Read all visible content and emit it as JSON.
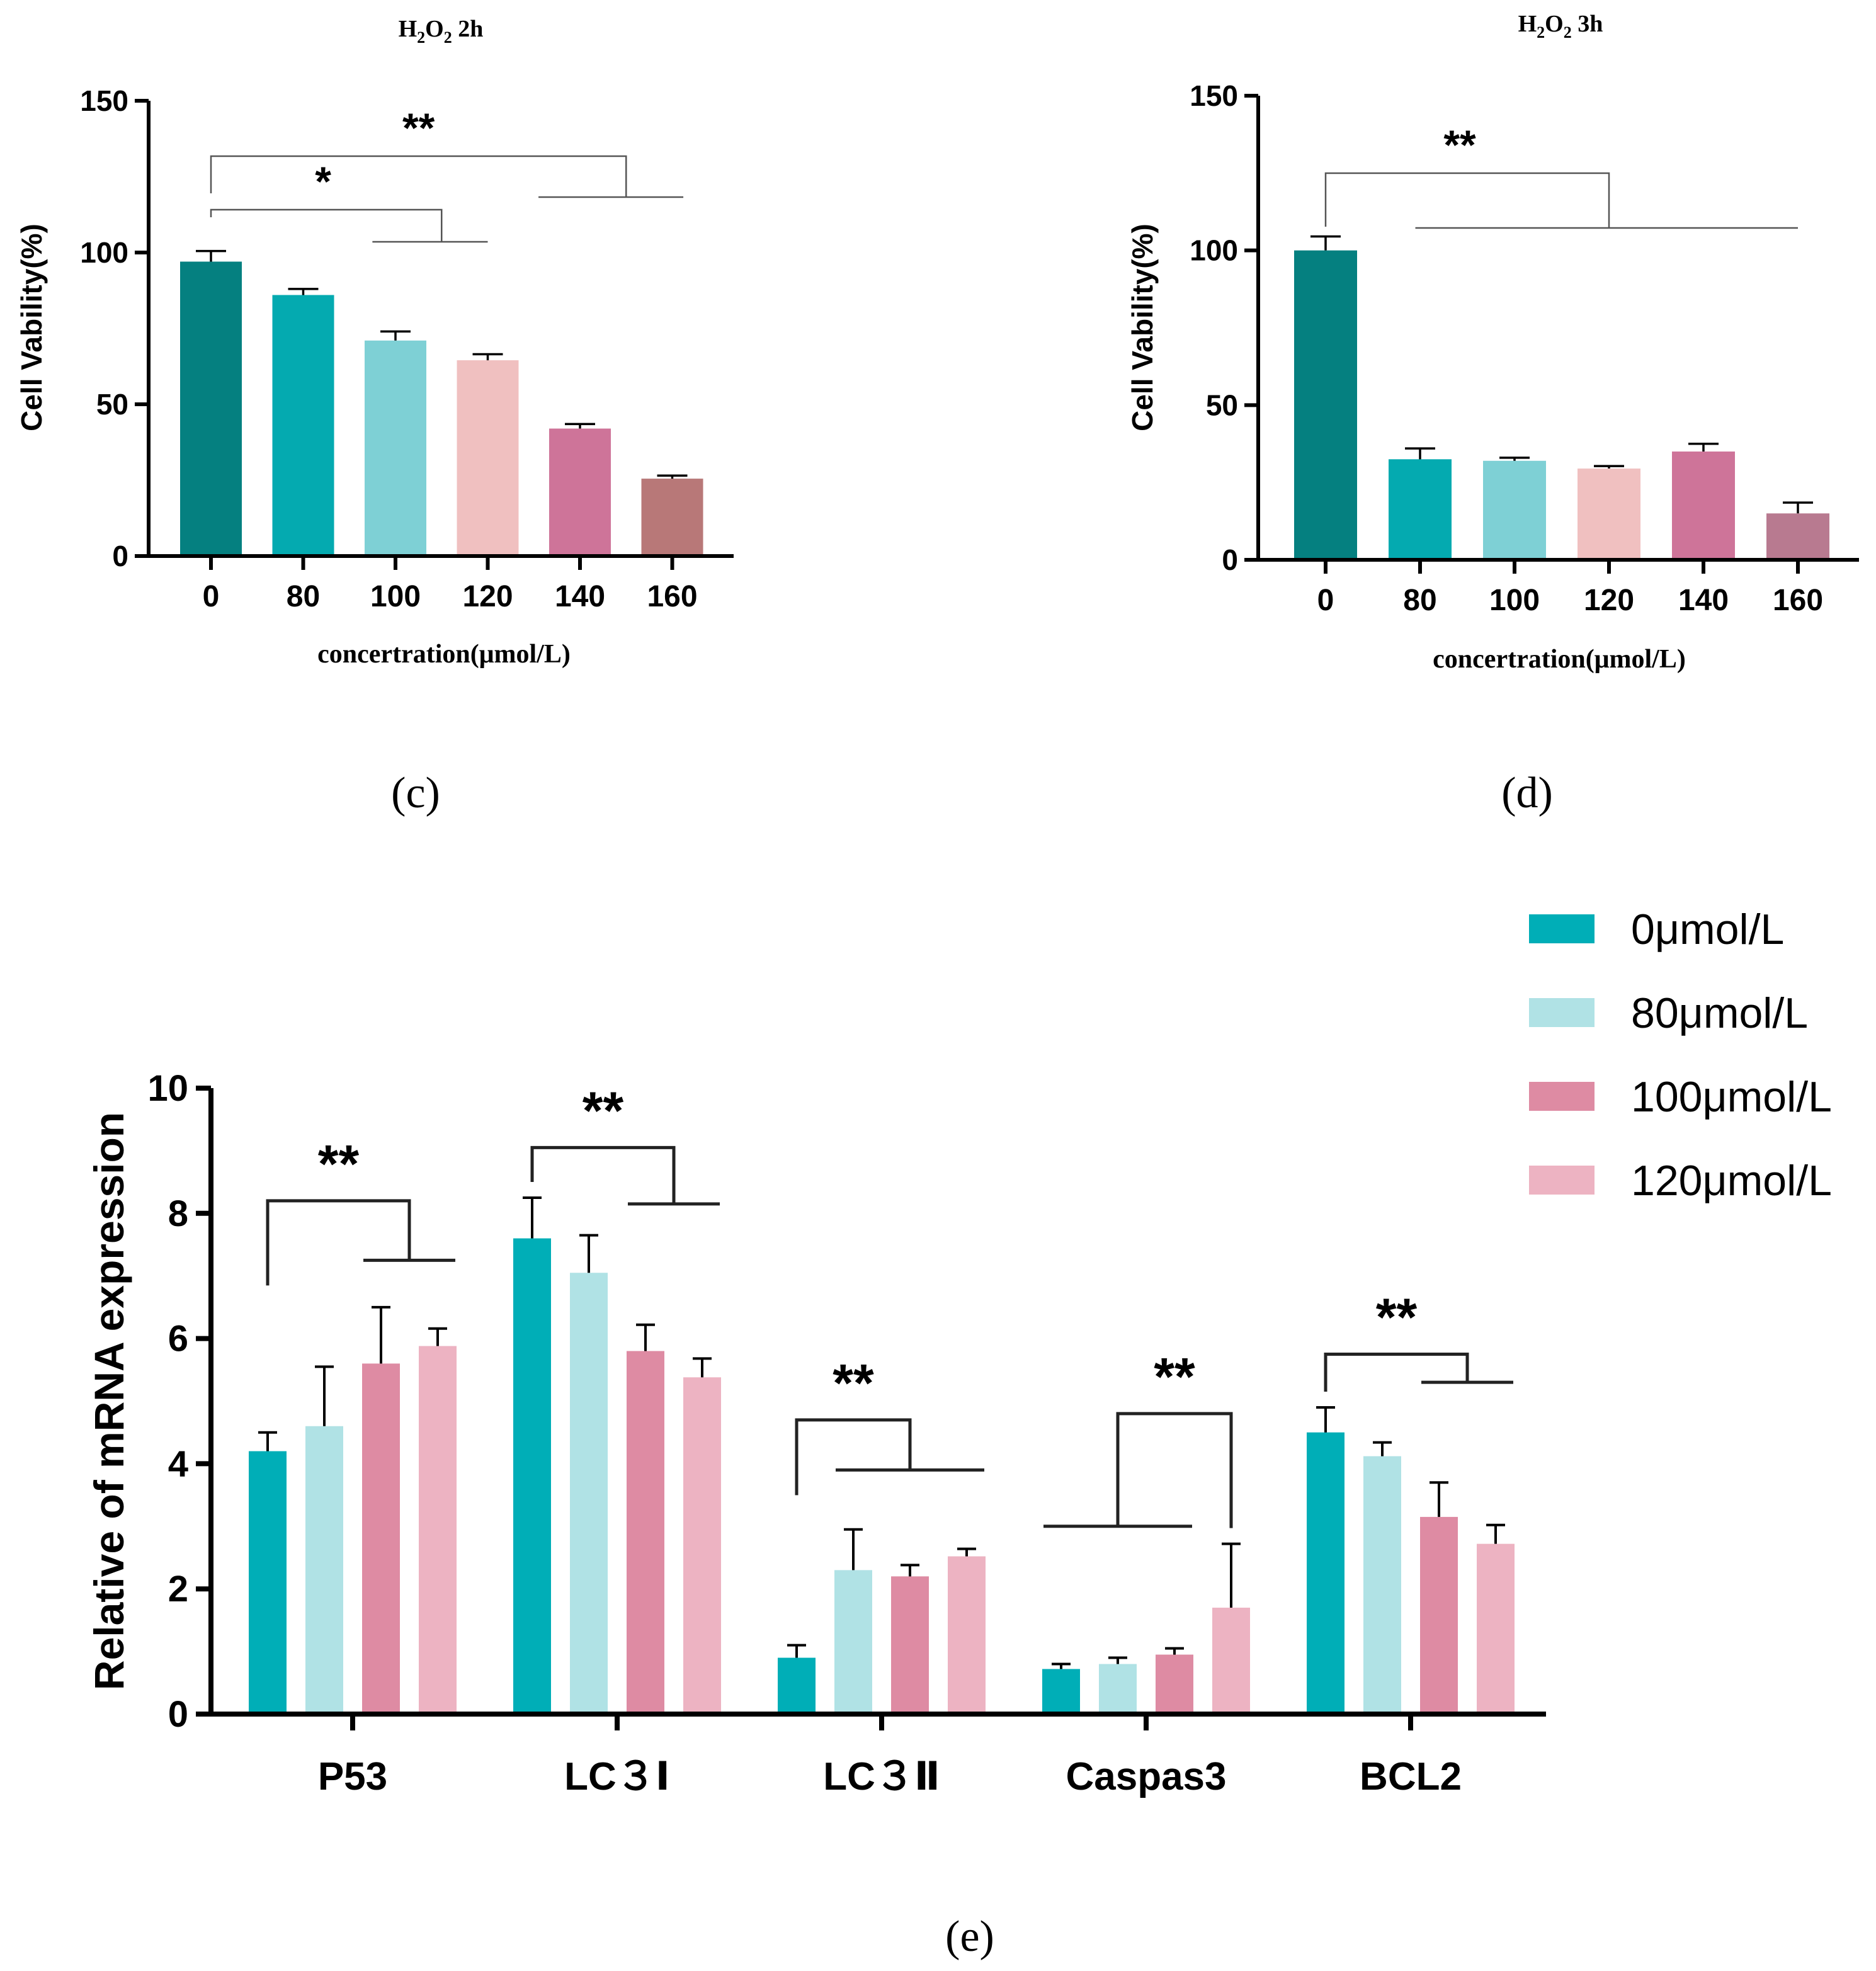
{
  "chart_data": [
    {
      "id": "c",
      "type": "bar",
      "title": "H2O2 2h",
      "title_parts": {
        "base1": "H",
        "sub1": "2",
        "base2": "O",
        "sub2": "2",
        "rest": " 2h"
      },
      "panel_label": "(c)",
      "xlabel": "concertration(μmol/L)",
      "ylabel": "Cell Vability(%)",
      "ylim": [
        0,
        150
      ],
      "yticks": [
        0,
        50,
        100,
        150
      ],
      "categories": [
        "0",
        "80",
        "100",
        "120",
        "140",
        "160"
      ],
      "values": [
        97,
        86,
        71,
        64.5,
        42,
        25.5
      ],
      "errors": [
        3.5,
        2,
        3,
        2,
        1.5,
        1
      ],
      "colors": [
        "#058080",
        "#04AAB0",
        "#7ED0D5",
        "#F0C0C0",
        "#CE7499",
        "#B87878"
      ],
      "significance": [
        {
          "label": "*",
          "from_cat": 0,
          "to_cat_start": 2,
          "to_cat_end": 3
        },
        {
          "label": "**",
          "from_cat": 0,
          "to_cat_start": 4,
          "to_cat_end": 5
        }
      ]
    },
    {
      "id": "d",
      "type": "bar",
      "title": "H2O2 3h",
      "title_parts": {
        "base1": "H",
        "sub1": "2",
        "base2": "O",
        "sub2": "2",
        "rest": " 3h"
      },
      "panel_label": "(d)",
      "xlabel": "concertration(μmol/L)",
      "ylabel": "Cell Vability(%)",
      "ylim": [
        0,
        150
      ],
      "yticks": [
        0,
        50,
        100,
        150
      ],
      "categories": [
        "0",
        "80",
        "100",
        "120",
        "140",
        "160"
      ],
      "values": [
        100,
        32.5,
        32,
        29.5,
        35,
        15
      ],
      "errors": [
        4.5,
        3.5,
        1,
        0.8,
        2.5,
        3.5
      ],
      "colors": [
        "#058080",
        "#04AAB0",
        "#7ED0D5",
        "#F0C0C0",
        "#CE7499",
        "#B87A90"
      ],
      "significance": [
        {
          "label": "**",
          "from_cat": 0,
          "to_cat_start": 1,
          "to_cat_end": 5
        }
      ]
    },
    {
      "id": "e",
      "type": "bar",
      "panel_label": "(e)",
      "xlabel": "",
      "ylabel": "Relative of mRNA expression",
      "ylim": [
        0,
        10
      ],
      "yticks": [
        0,
        2,
        4,
        6,
        8,
        10
      ],
      "categories": [
        "P53",
        "LC３Ⅰ",
        "LC３Ⅱ",
        "Caspas3",
        "BCL2"
      ],
      "series": [
        {
          "name": "0μmol/L",
          "color": "#00AEB7",
          "values": [
            4.2,
            7.6,
            0.9,
            0.72,
            4.5
          ],
          "errors": [
            0.3,
            0.65,
            0.2,
            0.08,
            0.4
          ]
        },
        {
          "name": "80μmol/L",
          "color": "#B0E2E5",
          "values": [
            4.6,
            7.05,
            2.3,
            0.8,
            4.12
          ],
          "errors": [
            0.95,
            0.6,
            0.65,
            0.1,
            0.22
          ]
        },
        {
          "name": "100μmol/L",
          "color": "#DE8BA3",
          "values": [
            5.6,
            5.8,
            2.2,
            0.95,
            3.15
          ],
          "errors": [
            0.9,
            0.42,
            0.18,
            0.1,
            0.55
          ]
        },
        {
          "name": "120μmol/L",
          "color": "#EDB3C2",
          "values": [
            5.88,
            5.38,
            2.52,
            1.7,
            2.72
          ],
          "errors": [
            0.28,
            0.3,
            0.12,
            1.02,
            0.3
          ]
        }
      ],
      "significance": [
        {
          "label": "**",
          "category": 0,
          "from_series": 0,
          "to_series_start": 2,
          "to_series_end": 3,
          "bracket_y": 8.2,
          "base_y": 7.25
        },
        {
          "label": "**",
          "category": 1,
          "from_series": 0,
          "to_series_start": 2,
          "to_series_end": 3,
          "bracket_y": 9.05,
          "base_y": 8.15
        },
        {
          "label": "**",
          "category": 2,
          "from_series": 0,
          "to_series_start": 1,
          "to_series_end": 3,
          "bracket_y": 4.7,
          "base_y": 3.9
        },
        {
          "label": "**",
          "category": 3,
          "from_series": 3,
          "to_series_start": 0,
          "to_series_end": 2,
          "bracket_y": 4.8,
          "base_y": 3.0
        },
        {
          "label": "**",
          "category": 4,
          "from_series": 0,
          "to_series_start": 2,
          "to_series_end": 3,
          "bracket_y": 5.75,
          "base_y": 5.3
        }
      ]
    }
  ]
}
